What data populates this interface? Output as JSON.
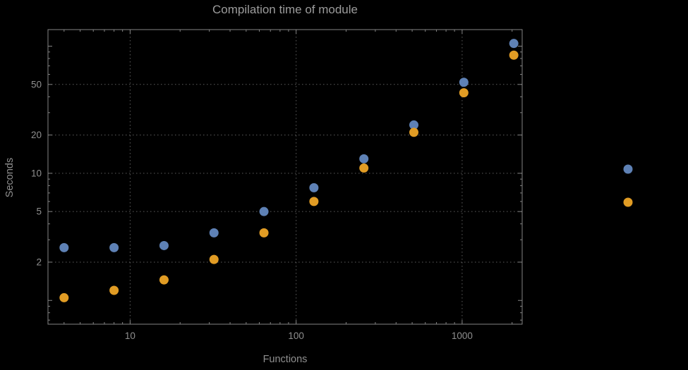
{
  "chart_data": {
    "type": "scatter",
    "title": "Compilation time of module",
    "xlabel": "Functions",
    "ylabel": "Seconds",
    "x_scale": "log",
    "y_scale": "log",
    "xlim": [
      3.2,
      2300
    ],
    "ylim": [
      0.65,
      135
    ],
    "x_ticks": [
      10,
      100,
      1000
    ],
    "y_ticks": [
      2,
      5,
      10,
      20,
      50
    ],
    "grid": "dotted",
    "legend_position": "right",
    "background": "#000000",
    "text_color": "#8f8f8f",
    "grid_color": "#5e5e5e",
    "frame_color": "#848484",
    "x": [
      4,
      8,
      16,
      32,
      64,
      128,
      256,
      512,
      1024,
      2048
    ],
    "series": [
      {
        "name": "blue",
        "color": "#5e81b5",
        "values": [
          2.6,
          2.6,
          2.7,
          3.4,
          5.0,
          7.7,
          13,
          24,
          52,
          105
        ]
      },
      {
        "name": "orange",
        "color": "#e19c24",
        "values": [
          1.05,
          1.2,
          1.45,
          2.1,
          3.4,
          6.0,
          11,
          21,
          43,
          85
        ]
      }
    ],
    "legend_markers": [
      {
        "series": "blue",
        "color": "#5e81b5"
      },
      {
        "series": "orange",
        "color": "#e19c24"
      }
    ]
  }
}
